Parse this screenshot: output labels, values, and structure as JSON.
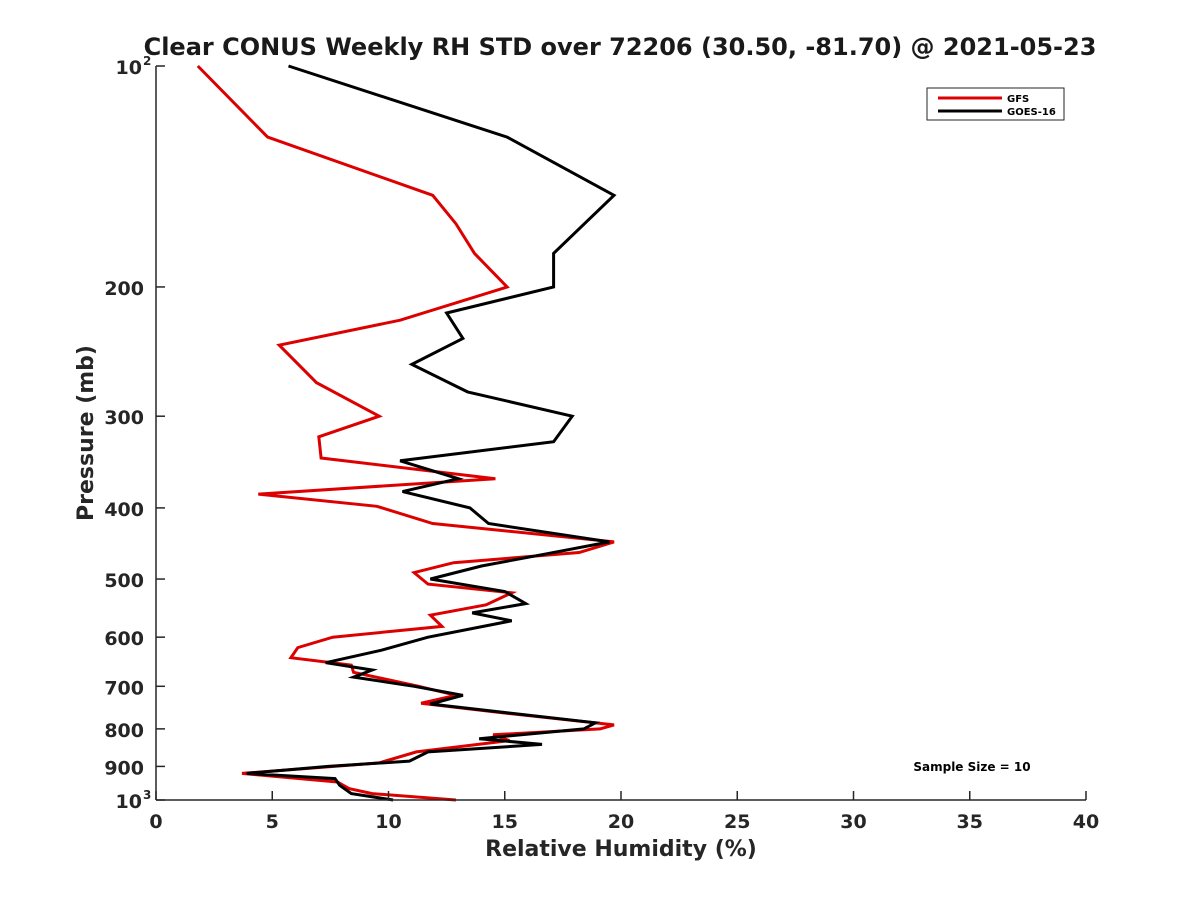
{
  "chart_data": {
    "type": "line",
    "title": "Clear CONUS Weekly RH STD over 72206 (30.50, -81.70) @ 2021-05-23",
    "xlabel": "Relative Humidity (%)",
    "ylabel": "Pressure (mb)",
    "xlim": [
      0,
      40
    ],
    "ylim": [
      100,
      1000
    ],
    "yscale": "log",
    "y_reversed": true,
    "grid": false,
    "legend_position": "top-right",
    "x_ticks": [
      {
        "value": 0,
        "label": "0"
      },
      {
        "value": 5,
        "label": "5"
      },
      {
        "value": 10,
        "label": "10"
      },
      {
        "value": 15,
        "label": "15"
      },
      {
        "value": 20,
        "label": "20"
      },
      {
        "value": 25,
        "label": "25"
      },
      {
        "value": 30,
        "label": "30"
      },
      {
        "value": 35,
        "label": "35"
      },
      {
        "value": 40,
        "label": "40"
      }
    ],
    "y_ticks": [
      {
        "value": 100,
        "label": "10",
        "exp": "2"
      },
      {
        "value": 200,
        "label": "200",
        "exp": ""
      },
      {
        "value": 300,
        "label": "300",
        "exp": ""
      },
      {
        "value": 400,
        "label": "400",
        "exp": ""
      },
      {
        "value": 500,
        "label": "500",
        "exp": ""
      },
      {
        "value": 600,
        "label": "600",
        "exp": ""
      },
      {
        "value": 700,
        "label": "700",
        "exp": ""
      },
      {
        "value": 800,
        "label": "800",
        "exp": ""
      },
      {
        "value": 900,
        "label": "900",
        "exp": ""
      },
      {
        "value": 1000,
        "label": "10",
        "exp": "3"
      }
    ],
    "annotation": "Sample Size = 10",
    "series": [
      {
        "name": "GFS",
        "color": "#dd0000",
        "points": [
          [
            1.8,
            100
          ],
          [
            4.8,
            125
          ],
          [
            11.9,
            150
          ],
          [
            12.9,
            164
          ],
          [
            13.7,
            180
          ],
          [
            15.1,
            200
          ],
          [
            10.5,
            222
          ],
          [
            5.3,
            240
          ],
          [
            6.9,
            270
          ],
          [
            9.6,
            300
          ],
          [
            7.0,
            320
          ],
          [
            7.1,
            342
          ],
          [
            14.6,
            365
          ],
          [
            4.4,
            383
          ],
          [
            9.5,
            398
          ],
          [
            11.9,
            420
          ],
          [
            19.7,
            445
          ],
          [
            18.2,
            460
          ],
          [
            12.8,
            475
          ],
          [
            11.1,
            490
          ],
          [
            11.7,
            508
          ],
          [
            15.3,
            522
          ],
          [
            14.2,
            542
          ],
          [
            11.8,
            560
          ],
          [
            12.3,
            580
          ],
          [
            7.6,
            600
          ],
          [
            6.1,
            620
          ],
          [
            5.8,
            640
          ],
          [
            8.4,
            655
          ],
          [
            8.5,
            670
          ],
          [
            11.3,
            700
          ],
          [
            12.9,
            720
          ],
          [
            11.4,
            738
          ],
          [
            14.8,
            760
          ],
          [
            19.7,
            790
          ],
          [
            19.1,
            800
          ],
          [
            14.5,
            815
          ],
          [
            15.2,
            830
          ],
          [
            11.2,
            860
          ],
          [
            9.6,
            890
          ],
          [
            3.7,
            920
          ],
          [
            7.8,
            945
          ],
          [
            8.3,
            965
          ],
          [
            9.3,
            980
          ],
          [
            12.9,
            1000
          ]
        ]
      },
      {
        "name": "GOES-16",
        "color": "#000000",
        "points": [
          [
            5.7,
            100
          ],
          [
            15.1,
            125
          ],
          [
            19.7,
            150
          ],
          [
            18.6,
            162
          ],
          [
            17.1,
            180
          ],
          [
            17.1,
            200
          ],
          [
            12.5,
            217
          ],
          [
            13.2,
            235
          ],
          [
            11.0,
            255
          ],
          [
            13.4,
            278
          ],
          [
            17.9,
            300
          ],
          [
            17.1,
            325
          ],
          [
            10.5,
            345
          ],
          [
            13.0,
            365
          ],
          [
            10.6,
            380
          ],
          [
            13.5,
            400
          ],
          [
            14.3,
            420
          ],
          [
            19.5,
            445
          ],
          [
            16.8,
            462
          ],
          [
            14.0,
            480
          ],
          [
            11.8,
            500
          ],
          [
            15.0,
            520
          ],
          [
            15.9,
            540
          ],
          [
            13.6,
            556
          ],
          [
            15.3,
            570
          ],
          [
            11.7,
            600
          ],
          [
            9.7,
            625
          ],
          [
            7.3,
            650
          ],
          [
            9.3,
            665
          ],
          [
            8.5,
            680
          ],
          [
            11.1,
            700
          ],
          [
            13.2,
            720
          ],
          [
            11.8,
            740
          ],
          [
            15.0,
            760
          ],
          [
            18.9,
            785
          ],
          [
            18.4,
            800
          ],
          [
            13.9,
            825
          ],
          [
            16.6,
            840
          ],
          [
            11.7,
            860
          ],
          [
            10.9,
            885
          ],
          [
            7.4,
            900
          ],
          [
            3.9,
            920
          ],
          [
            7.7,
            935
          ],
          [
            7.9,
            955
          ],
          [
            8.4,
            980
          ],
          [
            10.2,
            1000
          ]
        ]
      }
    ]
  }
}
